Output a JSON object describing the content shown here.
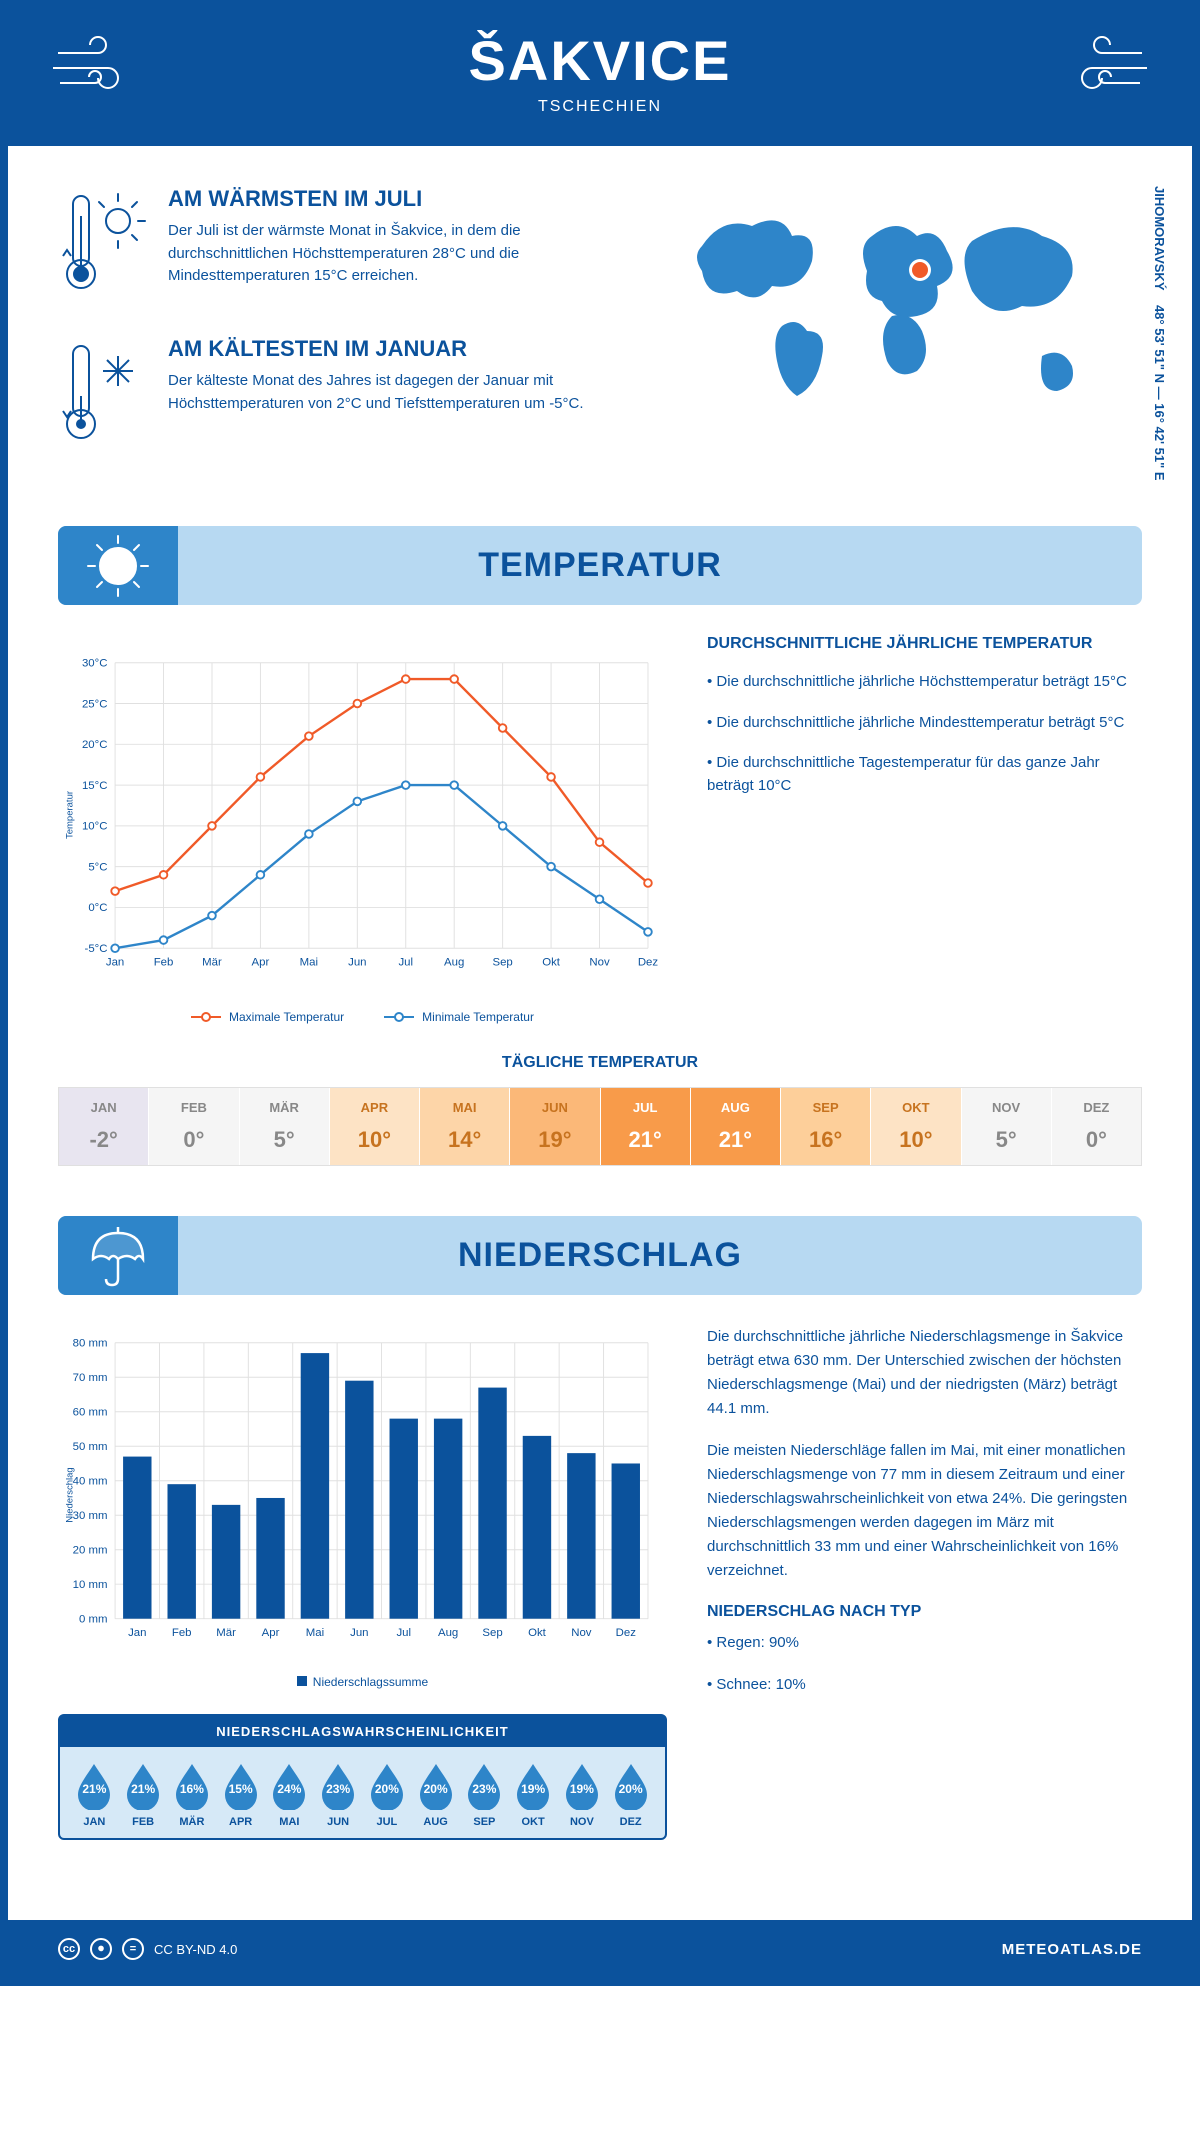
{
  "header": {
    "title": "ŠAKVICE",
    "subtitle": "TSCHECHIEN"
  },
  "intro": {
    "warm": {
      "title": "AM WÄRMSTEN IM JULI",
      "text": "Der Juli ist der wärmste Monat in Šakvice, in dem die durchschnittlichen Höchsttemperaturen 28°C und die Mindesttemperaturen 15°C erreichen."
    },
    "cold": {
      "title": "AM KÄLTESTEN IM JANUAR",
      "text": "Der kälteste Monat des Jahres ist dagegen der Januar mit Höchsttemperaturen von 2°C und Tiefsttemperaturen um -5°C."
    },
    "coords": "48° 53' 51\" N — 16° 42' 51\" E",
    "region": "JIHOMORAVSKÝ"
  },
  "sections": {
    "temperature": "TEMPERATUR",
    "precipitation": "NIEDERSCHLAG"
  },
  "temp_chart": {
    "type": "line",
    "months": [
      "Jan",
      "Feb",
      "Mär",
      "Apr",
      "Mai",
      "Jun",
      "Jul",
      "Aug",
      "Sep",
      "Okt",
      "Nov",
      "Dez"
    ],
    "max_series": [
      2,
      4,
      10,
      16,
      21,
      25,
      28,
      28,
      22,
      16,
      8,
      3
    ],
    "min_series": [
      -5,
      -4,
      -1,
      4,
      9,
      13,
      15,
      15,
      10,
      5,
      1,
      -3
    ],
    "max_color": "#f05a28",
    "min_color": "#2e85c9",
    "ylim": [
      -5,
      30
    ],
    "ytick_step": 5,
    "ylabel": "Temperatur",
    "grid_color": "#e0e0e0",
    "legend_max": "Maximale Temperatur",
    "legend_min": "Minimale Temperatur"
  },
  "temp_text": {
    "heading": "DURCHSCHNITTLICHE JÄHRLICHE TEMPERATUR",
    "p1": "• Die durchschnittliche jährliche Höchsttemperatur beträgt 15°C",
    "p2": "• Die durchschnittliche jährliche Mindesttemperatur beträgt 5°C",
    "p3": "• Die durchschnittliche Tagestemperatur für das ganze Jahr beträgt 10°C"
  },
  "daily_temp": {
    "title": "TÄGLICHE TEMPERATUR",
    "months": [
      "JAN",
      "FEB",
      "MÄR",
      "APR",
      "MAI",
      "JUN",
      "JUL",
      "AUG",
      "SEP",
      "OKT",
      "NOV",
      "DEZ"
    ],
    "values": [
      "-2°",
      "0°",
      "5°",
      "10°",
      "14°",
      "19°",
      "21°",
      "21°",
      "16°",
      "10°",
      "5°",
      "0°"
    ],
    "bg_colors": [
      "#e8e5f0",
      "#f5f5f5",
      "#f5f5f5",
      "#fde3c5",
      "#fdd5a8",
      "#fbb878",
      "#f89b4a",
      "#f89b4a",
      "#fdcf9a",
      "#fde3c5",
      "#f5f5f5",
      "#f5f5f5"
    ],
    "text_colors": [
      "#888",
      "#888",
      "#888",
      "#c7731f",
      "#c7731f",
      "#c7731f",
      "#fff",
      "#fff",
      "#c7731f",
      "#c7731f",
      "#888",
      "#888"
    ]
  },
  "precip_chart": {
    "type": "bar",
    "months": [
      "Jan",
      "Feb",
      "Mär",
      "Apr",
      "Mai",
      "Jun",
      "Jul",
      "Aug",
      "Sep",
      "Okt",
      "Nov",
      "Dez"
    ],
    "values": [
      47,
      39,
      33,
      35,
      77,
      69,
      58,
      58,
      67,
      53,
      48,
      45
    ],
    "bar_color": "#0b529c",
    "ylim": [
      0,
      80
    ],
    "ytick_step": 10,
    "ylabel": "Niederschlag",
    "grid_color": "#e0e0e0",
    "legend": "Niederschlagssumme"
  },
  "precip_text": {
    "p1": "Die durchschnittliche jährliche Niederschlagsmenge in Šakvice beträgt etwa 630 mm. Der Unterschied zwischen der höchsten Niederschlagsmenge (Mai) und der niedrigsten (März) beträgt 44.1 mm.",
    "p2": "Die meisten Niederschläge fallen im Mai, mit einer monatlichen Niederschlagsmenge von 77 mm in diesem Zeitraum und einer Niederschlagswahrscheinlichkeit von etwa 24%. Die geringsten Niederschlagsmengen werden dagegen im März mit durchschnittlich 33 mm und einer Wahrscheinlichkeit von 16% verzeichnet.",
    "type_heading": "NIEDERSCHLAG NACH TYP",
    "type1": "• Regen: 90%",
    "type2": "• Schnee: 10%"
  },
  "prob": {
    "title": "NIEDERSCHLAGSWAHRSCHEINLICHKEIT",
    "months": [
      "JAN",
      "FEB",
      "MÄR",
      "APR",
      "MAI",
      "JUN",
      "JUL",
      "AUG",
      "SEP",
      "OKT",
      "NOV",
      "DEZ"
    ],
    "values": [
      "21%",
      "21%",
      "16%",
      "15%",
      "24%",
      "23%",
      "20%",
      "20%",
      "23%",
      "19%",
      "19%",
      "20%"
    ],
    "drop_color": "#2e85c9"
  },
  "footer": {
    "license": "CC BY-ND 4.0",
    "site": "METEOATLAS.DE"
  },
  "colors": {
    "primary": "#0b529c",
    "secondary": "#2e85c9",
    "light_blue": "#b7d9f2"
  }
}
